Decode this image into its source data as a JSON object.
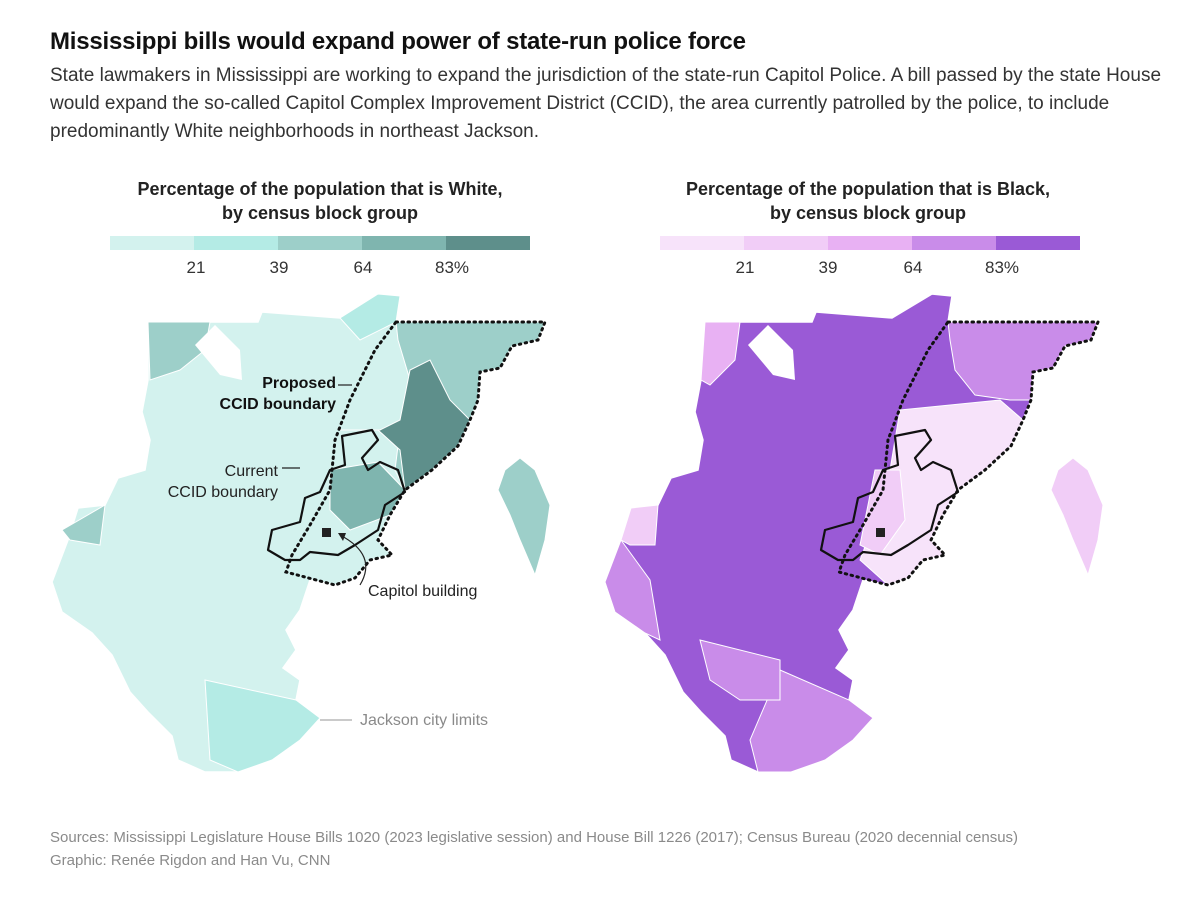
{
  "header": {
    "title": "Mississippi bills would expand power of state-run police force",
    "subtitle": "State lawmakers in Mississippi are working to expand the jurisdiction of the state-run Capitol Police. A bill passed by the state House would expand the so-called Capitol Complex Improvement District (CCID), the area currently patrolled by the police, to include predominantly White neighborhoods in northeast Jackson."
  },
  "white_map": {
    "title_line1": "Percentage of the population that is White,",
    "title_line2": "by census block group",
    "legend_colors": [
      "#d3f2ee",
      "#b4ebe5",
      "#9dcfc9",
      "#7fb5af",
      "#5e8f8b"
    ],
    "ticks": [
      "21",
      "39",
      "64",
      "83%"
    ]
  },
  "black_map": {
    "title_line1": "Percentage of the population that is Black,",
    "title_line2": "by census block group",
    "legend_colors": [
      "#f7e3fa",
      "#f1cdf7",
      "#e8b1f3",
      "#c98ce9",
      "#9a5ad6"
    ],
    "ticks": [
      "21",
      "39",
      "64",
      "83%"
    ]
  },
  "annotations": {
    "proposed_line1": "Proposed",
    "proposed_line2": "CCID boundary",
    "current_line1": "Current",
    "current_line2": "CCID boundary",
    "capitol": "Capitol building",
    "city_limits": "Jackson city limits"
  },
  "footer": {
    "sources": "Sources: Mississippi Legislature House Bills 1020 (2023 legislative session) and House Bill 1226 (2017); Census Bureau (2020 decennial census)",
    "credit": "Graphic: Renée Rigdon and Han Vu, CNN"
  }
}
